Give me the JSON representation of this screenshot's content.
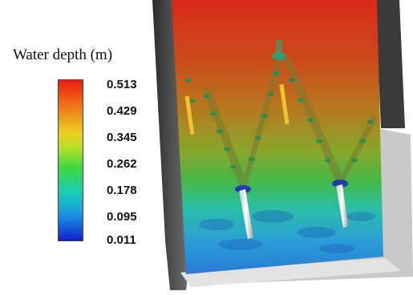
{
  "legend": {
    "title": "Water depth (m)",
    "ticks": [
      "0.513",
      "0.429",
      "0.345",
      "0.262",
      "0.178",
      "0.095",
      "0.011"
    ],
    "colors": {
      "max": "#e81e10",
      "mid_high": "#e8d020",
      "mid": "#3ed640",
      "mid_low": "#18cfb8",
      "min": "#1020c8"
    }
  },
  "simulation": {
    "view": "oblique top-down 3D render of a channel floor",
    "structures": [
      "two V-shaped deflector walls",
      "two yellow vertical posts",
      "two white inclined rods at the downstream ends"
    ]
  }
}
